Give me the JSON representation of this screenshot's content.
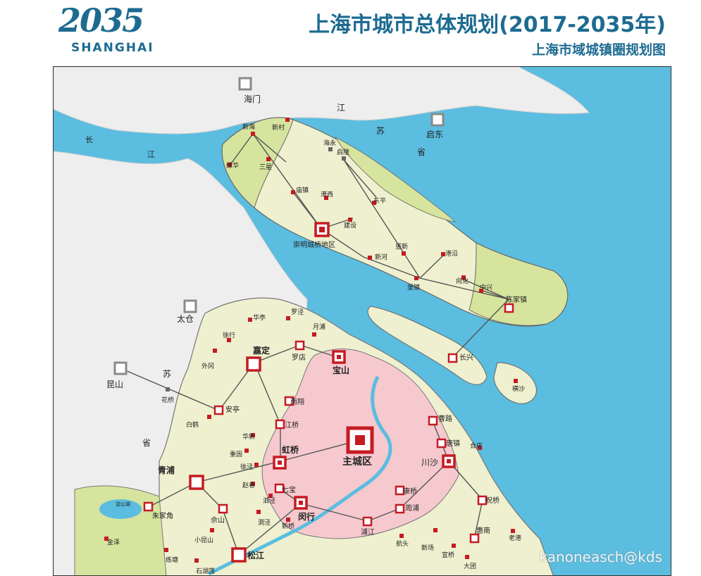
{
  "header": {
    "logo_year": "2035",
    "logo_city": "SHANGHAI",
    "title": "上海市城市总体规划(2017-2035年)",
    "subtitle": "上海市域城镇圈规划图"
  },
  "watermark": "kanoneasch@kds",
  "colors": {
    "water": "#5bbde0",
    "land_outside": "#eeeeee",
    "main_city": "#f6c9cf",
    "town_circle": "#eef0cf",
    "eco_zone": "#d6e49e",
    "node": "#c51b22",
    "brand": "#1d6b91"
  },
  "map": {
    "region_labels": [
      {
        "id": "haimen",
        "text": "海门"
      },
      {
        "id": "qidong",
        "text": "启东"
      },
      {
        "id": "taicang",
        "text": "太仓"
      },
      {
        "id": "kunshan",
        "text": "昆山"
      },
      {
        "id": "chang",
        "text": "长"
      },
      {
        "id": "jiang",
        "text": "江"
      },
      {
        "id": "js-jiang",
        "text": "江"
      },
      {
        "id": "js-su",
        "text": "苏"
      },
      {
        "id": "js-sheng",
        "text": "省"
      },
      {
        "id": "js-su2",
        "text": "苏"
      },
      {
        "id": "js-sheng2",
        "text": "省"
      }
    ],
    "main_city": {
      "id": "zhucheng",
      "label": "主城区"
    },
    "major_centers": [
      {
        "id": "chongming",
        "label": "崇明城桥地区"
      },
      {
        "id": "jiading",
        "label": "嘉定"
      },
      {
        "id": "baoshan",
        "label": "宝山"
      },
      {
        "id": "hongqiao",
        "label": "虹桥"
      },
      {
        "id": "qingpu",
        "label": "青浦"
      },
      {
        "id": "minhang",
        "label": "闵行"
      },
      {
        "id": "songjiang",
        "label": "松江"
      },
      {
        "id": "chuansha",
        "label": "川沙"
      }
    ],
    "sub_centers": [
      {
        "id": "chenjiazhen",
        "label": "陈家镇"
      },
      {
        "id": "changxing",
        "label": "长兴"
      },
      {
        "id": "anting",
        "label": "安亭"
      },
      {
        "id": "nanxiang",
        "label": "南翔"
      },
      {
        "id": "jiangqiao",
        "label": "江桥"
      },
      {
        "id": "luodian",
        "label": "罗店"
      },
      {
        "id": "zhujiajiao",
        "label": "朱家角"
      },
      {
        "id": "sheshan",
        "label": "佘山"
      },
      {
        "id": "qibao",
        "label": "七宝"
      },
      {
        "id": "pujiang",
        "label": "浦江"
      },
      {
        "id": "kangqiao",
        "label": "康桥"
      },
      {
        "id": "zhoupu",
        "label": "周浦"
      },
      {
        "id": "caolu",
        "label": "曹路"
      },
      {
        "id": "tangzhen",
        "label": "唐镇"
      },
      {
        "id": "zhuqiao",
        "label": "祝桥"
      },
      {
        "id": "huinan",
        "label": "惠南"
      }
    ],
    "towns": [
      {
        "id": "xinhai",
        "label": "新海"
      },
      {
        "id": "xincun",
        "label": "新村"
      },
      {
        "id": "luhua",
        "label": "绿华"
      },
      {
        "id": "sanxing",
        "label": "三星"
      },
      {
        "id": "miaozhen",
        "label": "庙镇"
      },
      {
        "id": "gangxi",
        "label": "港西"
      },
      {
        "id": "jianshe",
        "label": "建设"
      },
      {
        "id": "dongping",
        "label": "东平"
      },
      {
        "id": "xinhe",
        "label": "新河"
      },
      {
        "id": "shuxin",
        "label": "竖新"
      },
      {
        "id": "gangyan",
        "label": "港沿"
      },
      {
        "id": "baozhen",
        "label": "堡镇"
      },
      {
        "id": "xianghua",
        "label": "向化"
      },
      {
        "id": "zhongxing",
        "label": "中兴"
      },
      {
        "id": "hailong",
        "label": "海永"
      },
      {
        "id": "qilong",
        "label": "启隆"
      },
      {
        "id": "hengsha",
        "label": "横沙"
      },
      {
        "id": "luojing",
        "label": "罗泾"
      },
      {
        "id": "huating",
        "label": "华亭"
      },
      {
        "id": "xuhang",
        "label": "徐行"
      },
      {
        "id": "yuepu",
        "label": "月浦"
      },
      {
        "id": "waigang",
        "label": "外冈"
      },
      {
        "id": "huaqiao",
        "label": "花桥"
      },
      {
        "id": "baihe",
        "label": "白鹤"
      },
      {
        "id": "huaxin",
        "label": "华新"
      },
      {
        "id": "chonggu",
        "label": "重固"
      },
      {
        "id": "xujing",
        "label": "徐泾"
      },
      {
        "id": "zhaoxiang",
        "label": "赵巷"
      },
      {
        "id": "sijing",
        "label": "泗泾"
      },
      {
        "id": "dongjing",
        "label": "洞泾"
      },
      {
        "id": "xinqiao",
        "label": "新桥"
      },
      {
        "id": "heqing",
        "label": "合庆"
      },
      {
        "id": "laogang",
        "label": "老港"
      },
      {
        "id": "xinchang",
        "label": "新场"
      },
      {
        "id": "xuanqiao",
        "label": "宣桥"
      },
      {
        "id": "hangtou",
        "label": "航头"
      },
      {
        "id": "datuan",
        "label": "大团"
      },
      {
        "id": "xiaokunshan",
        "label": "小昆山"
      },
      {
        "id": "shihudang",
        "label": "石湖荡"
      },
      {
        "id": "lianta",
        "label": "练塘"
      },
      {
        "id": "jinze",
        "label": "金泽"
      }
    ],
    "outside_cities": [
      {
        "id": "out-haimen"
      },
      {
        "id": "out-qidong"
      },
      {
        "id": "out-taicang"
      },
      {
        "id": "out-kunshan"
      }
    ],
    "small_labels": [
      {
        "id": "dianshanhu",
        "text": "淀山湖"
      },
      {
        "id": "dsh-lake",
        "text": "淀山湖"
      }
    ]
  }
}
